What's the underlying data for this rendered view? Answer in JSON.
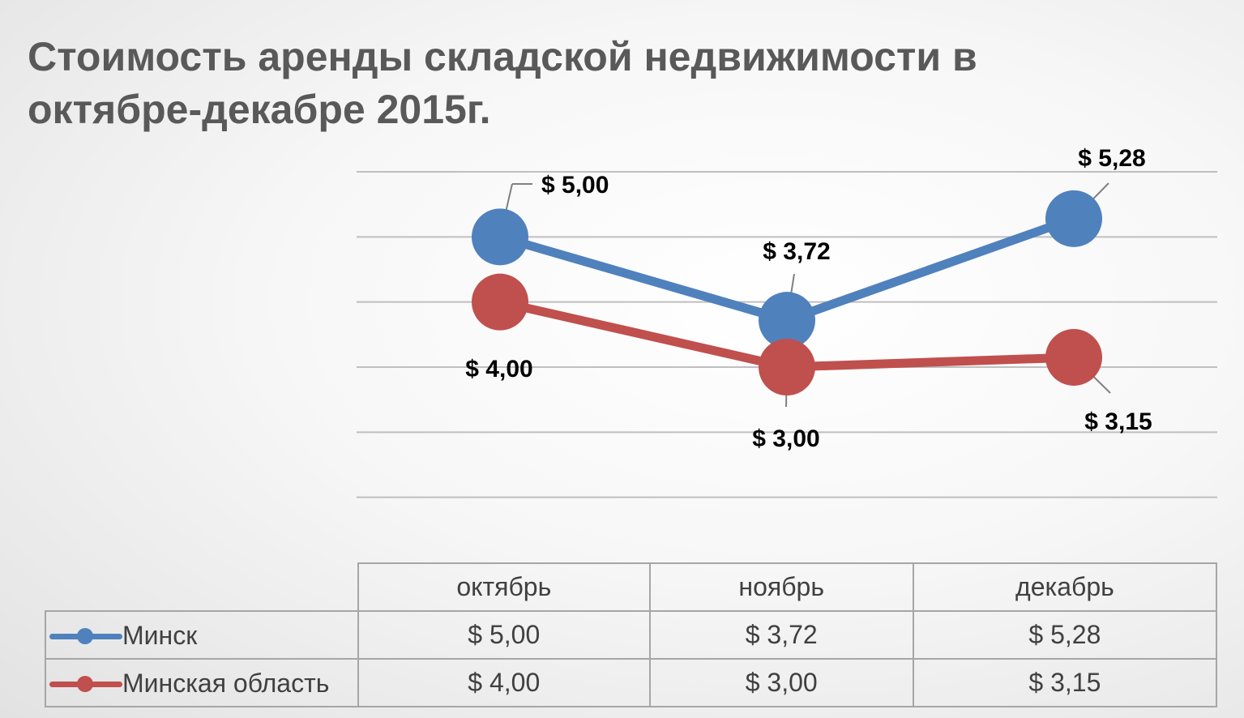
{
  "title": "Стоимость аренды складской недвижимости в октябре-декабре 2015г.",
  "colors": {
    "minsk": "#4f81bd",
    "region": "#c0504d",
    "grid": "#bfbfbf"
  },
  "chart_data": {
    "type": "line",
    "title": "Стоимость аренды складской недвижимости в октябре-декабре 2015г.",
    "categories": [
      "октябрь",
      "ноябрь",
      "декабрь"
    ],
    "series": [
      {
        "name": "Минск",
        "values": [
          5.0,
          3.72,
          5.28
        ],
        "labels": [
          "$ 5,00",
          "$ 3,72",
          "$ 5,28"
        ],
        "color": "#4f81bd"
      },
      {
        "name": "Минская область",
        "values": [
          4.0,
          3.0,
          3.15
        ],
        "labels": [
          "$ 4,00",
          "$ 3,00",
          "$ 3,15"
        ],
        "color": "#c0504d"
      }
    ],
    "ylim": [
      0,
      6
    ],
    "grid": true,
    "legend": "data-table",
    "data_table": true
  }
}
